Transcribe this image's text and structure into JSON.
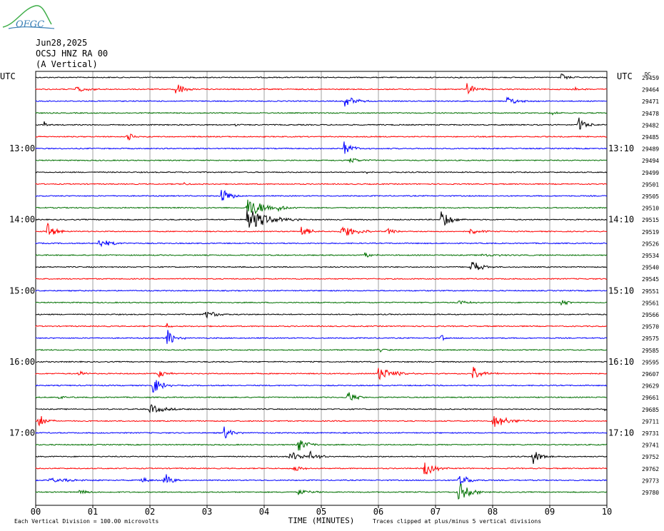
{
  "logo": {
    "text": "OFGC"
  },
  "header": {
    "date": "Jun28,2025",
    "station": "OCSJ HNZ RA 00",
    "component": "(A Vertical)"
  },
  "chart_data": {
    "type": "line",
    "title": "",
    "xlabel": "TIME (MINUTES)",
    "xlim": [
      0,
      10
    ],
    "x_ticks": [
      "00",
      "01",
      "02",
      "03",
      "04",
      "05",
      "06",
      "07",
      "08",
      "09",
      "10"
    ],
    "left_axis_label": "UTC",
    "right_axis_label": "UTC",
    "left_time_labels": [
      {
        "row": 6,
        "label": "13:00"
      },
      {
        "row": 12,
        "label": "14:00"
      },
      {
        "row": 18,
        "label": "15:00"
      },
      {
        "row": 24,
        "label": "16:00"
      },
      {
        "row": 30,
        "label": "17:00"
      }
    ],
    "right_time_labels": [
      {
        "row": 6,
        "label": "13:10"
      },
      {
        "row": 12,
        "label": "14:10"
      },
      {
        "row": 18,
        "label": "15:10"
      },
      {
        "row": 24,
        "label": "16:10"
      },
      {
        "row": 30,
        "label": "17:10"
      }
    ],
    "trace_colors": [
      "#000000",
      "#ff0000",
      "#0000ff",
      "#007000"
    ],
    "dc_label": "DC",
    "dc_offsets": [
      "29459",
      "29464",
      "29471",
      "29478",
      "29482",
      "29485",
      "29489",
      "29494",
      "29499",
      "29501",
      "29505",
      "29510",
      "29515",
      "29519",
      "29526",
      "29534",
      "29540",
      "29545",
      "29551",
      "29561",
      "29566",
      "29570",
      "29575",
      "29585",
      "29595",
      "29607",
      "29629",
      "29661",
      "29685",
      "29711",
      "29731",
      "29741",
      "29752",
      "29762",
      "29773",
      "29780"
    ],
    "events": [
      {
        "row": 0,
        "x": 9.2,
        "amp": 6,
        "dur": 0.15
      },
      {
        "row": 1,
        "x": 0.7,
        "amp": 4,
        "dur": 0.35
      },
      {
        "row": 1,
        "x": 2.45,
        "amp": 12,
        "dur": 0.2
      },
      {
        "row": 1,
        "x": 7.55,
        "amp": 8,
        "dur": 0.25
      },
      {
        "row": 1,
        "x": 9.4,
        "amp": 5,
        "dur": 0.15
      },
      {
        "row": 2,
        "x": 5.4,
        "amp": 10,
        "dur": 0.25
      },
      {
        "row": 2,
        "x": 8.25,
        "amp": 6,
        "dur": 0.3
      },
      {
        "row": 3,
        "x": 9.0,
        "amp": 3,
        "dur": 0.2
      },
      {
        "row": 4,
        "x": 0.15,
        "amp": 6,
        "dur": 0.08
      },
      {
        "row": 4,
        "x": 3.5,
        "amp": 3,
        "dur": 0.1
      },
      {
        "row": 4,
        "x": 9.5,
        "amp": 11,
        "dur": 0.2
      },
      {
        "row": 5,
        "x": 1.6,
        "amp": 6,
        "dur": 0.2
      },
      {
        "row": 6,
        "x": 5.4,
        "amp": 10,
        "dur": 0.25
      },
      {
        "row": 7,
        "x": 5.5,
        "amp": 4,
        "dur": 0.3
      },
      {
        "row": 8,
        "x": 5.8,
        "amp": 2,
        "dur": 0.3
      },
      {
        "row": 9,
        "x": 2.6,
        "amp": 2,
        "dur": 0.2
      },
      {
        "row": 10,
        "x": 3.25,
        "amp": 14,
        "dur": 0.2
      },
      {
        "row": 11,
        "x": 3.7,
        "amp": 14,
        "dur": 0.5
      },
      {
        "row": 11,
        "x": 4.25,
        "amp": 4,
        "dur": 0.15
      },
      {
        "row": 12,
        "x": 3.7,
        "amp": 18,
        "dur": 0.5
      },
      {
        "row": 12,
        "x": 7.1,
        "amp": 14,
        "dur": 0.25
      },
      {
        "row": 13,
        "x": 0.2,
        "amp": 12,
        "dur": 0.2
      },
      {
        "row": 13,
        "x": 4.65,
        "amp": 9,
        "dur": 0.2
      },
      {
        "row": 13,
        "x": 5.35,
        "amp": 9,
        "dur": 0.4
      },
      {
        "row": 13,
        "x": 6.15,
        "amp": 5,
        "dur": 0.25
      },
      {
        "row": 13,
        "x": 7.6,
        "amp": 4,
        "dur": 0.3
      },
      {
        "row": 14,
        "x": 1.1,
        "amp": 6,
        "dur": 0.35
      },
      {
        "row": 15,
        "x": 5.75,
        "amp": 5,
        "dur": 0.2
      },
      {
        "row": 15,
        "x": 7.8,
        "amp": 2,
        "dur": 0.6
      },
      {
        "row": 16,
        "x": 7.6,
        "amp": 12,
        "dur": 0.25
      },
      {
        "row": 19,
        "x": 7.4,
        "amp": 3,
        "dur": 0.3
      },
      {
        "row": 19,
        "x": 9.2,
        "amp": 5,
        "dur": 0.2
      },
      {
        "row": 20,
        "x": 2.95,
        "amp": 6,
        "dur": 0.35
      },
      {
        "row": 21,
        "x": 2.3,
        "amp": 5,
        "dur": 0.1
      },
      {
        "row": 22,
        "x": 2.3,
        "amp": 14,
        "dur": 0.2
      },
      {
        "row": 22,
        "x": 7.1,
        "amp": 6,
        "dur": 0.08
      },
      {
        "row": 23,
        "x": 6.0,
        "amp": 4,
        "dur": 0.15
      },
      {
        "row": 25,
        "x": 0.75,
        "amp": 5,
        "dur": 0.15
      },
      {
        "row": 25,
        "x": 2.15,
        "amp": 6,
        "dur": 0.2
      },
      {
        "row": 25,
        "x": 6.0,
        "amp": 10,
        "dur": 0.4
      },
      {
        "row": 25,
        "x": 7.65,
        "amp": 12,
        "dur": 0.25
      },
      {
        "row": 26,
        "x": 2.05,
        "amp": 14,
        "dur": 0.2
      },
      {
        "row": 27,
        "x": 0.4,
        "amp": 4,
        "dur": 0.15
      },
      {
        "row": 27,
        "x": 5.45,
        "amp": 10,
        "dur": 0.2
      },
      {
        "row": 28,
        "x": 2.0,
        "amp": 7,
        "dur": 0.35
      },
      {
        "row": 28,
        "x": 9.95,
        "amp": 3,
        "dur": 0.1
      },
      {
        "row": 29,
        "x": 0.05,
        "amp": 10,
        "dur": 0.2
      },
      {
        "row": 29,
        "x": 8.0,
        "amp": 10,
        "dur": 0.4
      },
      {
        "row": 30,
        "x": 3.3,
        "amp": 10,
        "dur": 0.2
      },
      {
        "row": 31,
        "x": 4.6,
        "amp": 10,
        "dur": 0.25
      },
      {
        "row": 32,
        "x": 4.45,
        "amp": 8,
        "dur": 0.3
      },
      {
        "row": 32,
        "x": 4.8,
        "amp": 8,
        "dur": 0.2
      },
      {
        "row": 32,
        "x": 8.7,
        "amp": 12,
        "dur": 0.2
      },
      {
        "row": 33,
        "x": 4.5,
        "amp": 6,
        "dur": 0.2
      },
      {
        "row": 33,
        "x": 6.8,
        "amp": 12,
        "dur": 0.25
      },
      {
        "row": 34,
        "x": 0.2,
        "amp": 3,
        "dur": 0.8
      },
      {
        "row": 34,
        "x": 1.85,
        "amp": 4,
        "dur": 0.2
      },
      {
        "row": 34,
        "x": 2.25,
        "amp": 12,
        "dur": 0.2
      },
      {
        "row": 34,
        "x": 7.4,
        "amp": 10,
        "dur": 0.25
      },
      {
        "row": 35,
        "x": 0.75,
        "amp": 3,
        "dur": 0.3
      },
      {
        "row": 35,
        "x": 4.6,
        "amp": 4,
        "dur": 0.35
      },
      {
        "row": 35,
        "x": 7.4,
        "amp": 14,
        "dur": 0.3
      }
    ],
    "footer_left": "Each Vertical Division =  100.00 microvolts",
    "footer_right": "Traces clipped at plus/minus 5 vertical divisions"
  }
}
